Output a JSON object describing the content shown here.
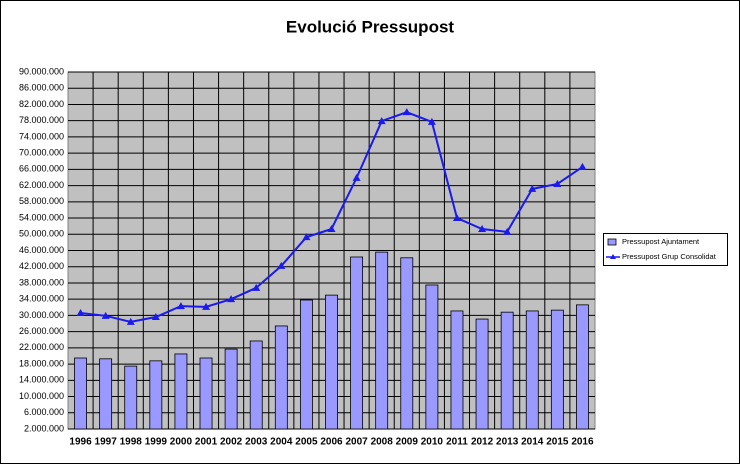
{
  "chart_data": {
    "type": "bar-line",
    "title": "Evolució Pressupost",
    "categories": [
      "1996",
      "1997",
      "1998",
      "1999",
      "2000",
      "2001",
      "2002",
      "2003",
      "2004",
      "2005",
      "2006",
      "2007",
      "2008",
      "2009",
      "2010",
      "2011",
      "2012",
      "2013",
      "2014",
      "2015",
      "2016"
    ],
    "series": [
      {
        "name": "Pressupost Ajuntament",
        "type": "bar",
        "color": "#9999ff",
        "values": [
          19500000,
          19300000,
          17500000,
          18800000,
          20500000,
          19500000,
          21700000,
          23700000,
          27400000,
          33800000,
          35000000,
          44400000,
          45600000,
          44200000,
          37500000,
          31100000,
          29100000,
          30800000,
          31100000,
          31300000,
          32600000
        ]
      },
      {
        "name": "Pressupost Grup Consolidat",
        "type": "line",
        "color": "#1a1aee",
        "values": [
          30600000,
          29900000,
          28400000,
          29600000,
          32300000,
          32100000,
          34000000,
          36800000,
          42200000,
          49300000,
          51300000,
          63900000,
          77900000,
          80100000,
          77700000,
          54000000,
          51300000,
          50600000,
          61200000,
          62400000,
          66600000
        ]
      }
    ],
    "ylim": [
      2000000,
      90000000
    ],
    "yticks": [
      {
        "value": 2000000,
        "label": "2.000.000"
      },
      {
        "value": 6000000,
        "label": "6.000.000"
      },
      {
        "value": 10000000,
        "label": "10.000.000"
      },
      {
        "value": 14000000,
        "label": "14.000.000"
      },
      {
        "value": 18000000,
        "label": "18.000.000"
      },
      {
        "value": 22000000,
        "label": "22.000.000"
      },
      {
        "value": 26000000,
        "label": "26.000.000"
      },
      {
        "value": 30000000,
        "label": "30.000.000"
      },
      {
        "value": 34000000,
        "label": "34.000.000"
      },
      {
        "value": 38000000,
        "label": "38.000.000"
      },
      {
        "value": 42000000,
        "label": "42.000.000"
      },
      {
        "value": 46000000,
        "label": "46.000.000"
      },
      {
        "value": 50000000,
        "label": "50.000.000"
      },
      {
        "value": 54000000,
        "label": "54.000.000"
      },
      {
        "value": 58000000,
        "label": "58.000.000"
      },
      {
        "value": 62000000,
        "label": "62.000.000"
      },
      {
        "value": 66000000,
        "label": "66.000.000"
      },
      {
        "value": 70000000,
        "label": "70.000.000"
      },
      {
        "value": 74000000,
        "label": "74.000.000"
      },
      {
        "value": 78000000,
        "label": "78.000.000"
      },
      {
        "value": 82000000,
        "label": "82.000.000"
      },
      {
        "value": 86000000,
        "label": "86.000.000"
      },
      {
        "value": 90000000,
        "label": "90.000.000"
      }
    ],
    "grid": true,
    "legend": "right",
    "plot_background": "#c0c0c0"
  }
}
